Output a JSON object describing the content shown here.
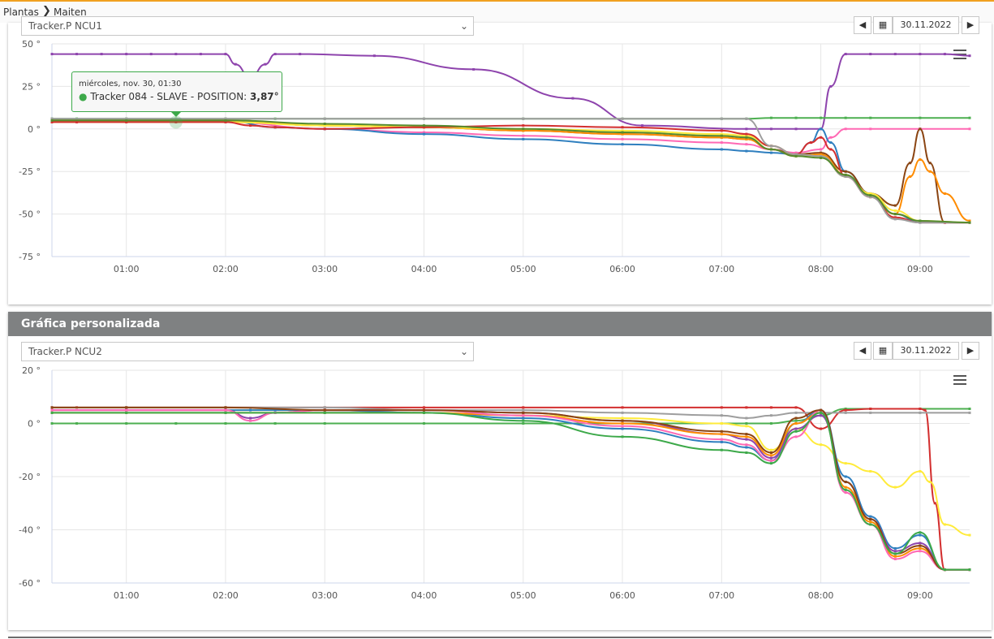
{
  "breadcrumb": {
    "items": [
      "Plantas",
      "Maiten"
    ],
    "separator": "❯"
  },
  "panel2": {
    "title": "Gráfica personalizada"
  },
  "chart1": {
    "selector_value": "Tracker.P NCU1",
    "date": "30.11.2022",
    "prev_label": "◀",
    "next_label": "▶",
    "calendar_icon": "calendar-icon",
    "tooltip": {
      "date": "miércoles, nov. 30, 01:30",
      "series": "Tracker 084 - SLAVE - POSITION: ",
      "value": "3,87°"
    }
  },
  "chart2": {
    "selector_value": "Tracker.P NCU2",
    "date": "30.11.2022",
    "prev_label": "◀",
    "next_label": "▶",
    "calendar_icon": "calendar-icon"
  },
  "colors": {
    "accent": "#f0a020",
    "header": "#7f8182",
    "grid": "#e6e6e6"
  },
  "chart_data": [
    {
      "type": "line",
      "title": "",
      "x_ticks": [
        "01:00",
        "02:00",
        "03:00",
        "04:00",
        "05:00",
        "06:00",
        "07:00",
        "08:00",
        "09:00"
      ],
      "y_ticks": [
        "50 °",
        "25 °",
        "0 °",
        "-25 °",
        "-50 °",
        "-75 °"
      ],
      "y_tick_values": [
        50,
        25,
        0,
        -25,
        -50,
        -75
      ],
      "ylim": [
        -75,
        50
      ],
      "xlim_hours": [
        0.25,
        9.5
      ],
      "grid": true,
      "series": [
        {
          "color": "#8e44ad",
          "x": [
            0.25,
            0.5,
            0.75,
            1,
            1.25,
            1.5,
            1.75,
            2,
            2.1,
            2.25,
            2.4,
            2.5,
            2.75,
            3.5,
            4.5,
            5.5,
            6.2,
            7.25,
            7.5,
            7.75,
            8,
            8.1,
            8.25,
            8.5,
            8.75,
            9,
            9.25,
            9.5
          ],
          "y": [
            44,
            44,
            44,
            44,
            44,
            44,
            44,
            44,
            38,
            30,
            38,
            44,
            44,
            43,
            35,
            18,
            2,
            0,
            0,
            0,
            0,
            25,
            44,
            44,
            44,
            44,
            44,
            43
          ]
        },
        {
          "color": "#4caf50",
          "x": [
            0.25,
            0.5,
            1,
            1.5,
            2,
            2.5,
            3,
            4,
            5,
            6,
            7,
            7.25,
            7.5,
            7.75,
            8,
            8.25,
            8.5,
            9,
            9.5
          ],
          "y": [
            6,
            6,
            6,
            6,
            6,
            6,
            6,
            6,
            6,
            6,
            6,
            6,
            6.5,
            6.5,
            6.5,
            6.5,
            6.5,
            6.5,
            6.5
          ]
        },
        {
          "color": "#ff69b4",
          "x": [
            0.25,
            0.5,
            1,
            2,
            3,
            4,
            5,
            6,
            7,
            7.25,
            7.5,
            7.75,
            8,
            8.1,
            8.25,
            8.5,
            9,
            9.5
          ],
          "y": [
            4,
            4,
            4,
            4,
            0,
            -2,
            -4,
            -6,
            -8,
            -9,
            -12,
            -14,
            -12,
            -5,
            0,
            0,
            0,
            0
          ]
        },
        {
          "color": "#2f7fbf",
          "x": [
            0.25,
            0.5,
            1,
            2,
            2.5,
            3,
            4,
            5,
            6,
            7,
            7.25,
            7.5,
            7.75,
            7.9,
            8,
            8.1,
            8.25,
            8.5,
            8.75,
            9,
            9.25,
            9.5
          ],
          "y": [
            5,
            5,
            5,
            5,
            1,
            0,
            -3,
            -6,
            -9,
            -12,
            -13,
            -14,
            -15,
            -8,
            0,
            -8,
            -25,
            -38,
            -50,
            -55,
            -55,
            -55
          ]
        },
        {
          "color": "#8b4513",
          "x": [
            0.25,
            1,
            2,
            3,
            4,
            5,
            6,
            7,
            7.25,
            7.5,
            7.75,
            8,
            8.25,
            8.5,
            8.75,
            8.9,
            9,
            9.1,
            9.25,
            9.5
          ],
          "y": [
            5,
            5,
            5,
            2,
            1,
            -1,
            -3,
            -5,
            -6,
            -12,
            -15,
            -14,
            -25,
            -38,
            -45,
            -20,
            0,
            -20,
            -55,
            -55
          ]
        },
        {
          "color": "#ff8c00",
          "x": [
            0.25,
            1,
            2,
            3,
            4,
            5,
            6,
            7,
            7.25,
            7.5,
            7.75,
            8,
            8.25,
            8.5,
            8.75,
            8.9,
            9,
            9.1,
            9.25,
            9.5
          ],
          "y": [
            5,
            5,
            5,
            2,
            1,
            -1,
            -3,
            -5,
            -6,
            -12,
            -16,
            -15,
            -27,
            -40,
            -50,
            -28,
            -18,
            -25,
            -38,
            -54
          ]
        },
        {
          "color": "#ffeb3b",
          "x": [
            0.25,
            1,
            2,
            3,
            4,
            5,
            6,
            7,
            7.25,
            7.5,
            7.75,
            8,
            8.25,
            8.5,
            8.75,
            9,
            9.5
          ],
          "y": [
            4,
            4,
            4,
            2,
            1,
            0,
            -1,
            -3,
            -4,
            -10,
            -15,
            -16,
            -28,
            -38,
            -48,
            -54,
            -55
          ]
        },
        {
          "color": "#d32f2f",
          "x": [
            0.25,
            0.5,
            1,
            1.5,
            2,
            2.25,
            2.5,
            3,
            4,
            5,
            6,
            7,
            7.25,
            7.5,
            7.75,
            7.9,
            8,
            8.1,
            8.25,
            8.5,
            8.75,
            9,
            9.25,
            9.5
          ],
          "y": [
            4,
            4,
            4,
            4,
            4,
            2,
            1,
            0,
            1,
            2,
            1,
            -1,
            -3,
            -10,
            -15,
            -8,
            -5,
            -12,
            -28,
            -40,
            -52,
            -55,
            -55,
            -55
          ]
        },
        {
          "color": "#9e9e9e",
          "x": [
            0.25,
            1,
            2,
            3,
            4,
            5,
            6,
            7,
            7.25,
            7.5,
            7.75,
            8,
            8.25,
            8.5,
            8.75,
            9,
            9.5
          ],
          "y": [
            6,
            6,
            6,
            6,
            6,
            6,
            6,
            6,
            6,
            -10,
            -15,
            -16,
            -28,
            -40,
            -53,
            -55,
            -55
          ]
        },
        {
          "color": "#558b2f",
          "x": [
            0.25,
            1,
            2,
            3,
            4,
            5,
            6,
            7,
            7.25,
            7.5,
            7.75,
            8,
            8.25,
            8.5,
            8.75,
            9,
            9.5
          ],
          "y": [
            5,
            5,
            5,
            3,
            2,
            0,
            -2,
            -4,
            -5,
            -12,
            -16,
            -17,
            -27,
            -39,
            -50,
            -54,
            -55
          ]
        }
      ]
    },
    {
      "type": "line",
      "title": "",
      "x_ticks": [
        "01:00",
        "02:00",
        "03:00",
        "04:00",
        "05:00",
        "06:00",
        "07:00",
        "08:00",
        "09:00"
      ],
      "y_ticks": [
        "20 °",
        "0 °",
        "-20 °",
        "-40 °",
        "-60 °"
      ],
      "y_tick_values": [
        20,
        0,
        -20,
        -40,
        -60
      ],
      "ylim": [
        -60,
        20
      ],
      "xlim_hours": [
        0.25,
        9.5
      ],
      "grid": true,
      "series": [
        {
          "color": "#4caf50",
          "x": [
            0.25,
            0.5,
            1,
            1.5,
            2,
            2.5,
            3,
            4,
            5,
            6,
            7,
            7.25,
            7.5,
            7.75,
            8,
            8.25,
            8.5,
            9,
            9.5
          ],
          "y": [
            0,
            0,
            0,
            0,
            0,
            0,
            0,
            0,
            0,
            0,
            0,
            0,
            0,
            1,
            3,
            5.5,
            5.5,
            5.5,
            5.5
          ]
        },
        {
          "color": "#d32f2f",
          "x": [
            0.25,
            0.5,
            1,
            2,
            3,
            4,
            5,
            6,
            7,
            7.25,
            7.5,
            7.75,
            8,
            8.25,
            8.5,
            9,
            9.05,
            9.15,
            9.25,
            9.5
          ],
          "y": [
            6,
            6,
            6,
            6,
            6,
            6,
            6,
            6,
            6,
            6,
            6,
            6,
            -2,
            5,
            5.5,
            5.5,
            5,
            -30,
            -55,
            -55
          ]
        },
        {
          "color": "#9e9e9e",
          "x": [
            0.25,
            1,
            2,
            3,
            4,
            5,
            6,
            7,
            7.25,
            7.5,
            7.75,
            8,
            8.25,
            8.5,
            9,
            9.5
          ],
          "y": [
            6,
            6,
            6,
            6,
            5,
            5,
            4,
            3,
            2,
            3,
            4,
            4,
            4,
            4,
            4,
            4
          ]
        },
        {
          "color": "#ffeb3b",
          "x": [
            0.25,
            1,
            2,
            3,
            4,
            5,
            6,
            7,
            7.25,
            7.5,
            7.75,
            8,
            8.25,
            8.5,
            8.75,
            9,
            9.1,
            9.25,
            9.5
          ],
          "y": [
            5,
            5,
            5,
            5,
            4,
            3,
            2,
            0,
            -1,
            -10,
            -2,
            -8,
            -15,
            -18,
            -24,
            -18,
            -22,
            -38,
            -42
          ]
        },
        {
          "color": "#2f7fbf",
          "x": [
            0.25,
            1,
            2,
            2.25,
            2.5,
            3,
            4,
            5,
            6,
            7,
            7.25,
            7.5,
            7.75,
            8,
            8.25,
            8.5,
            8.75,
            9,
            9.25,
            9.5
          ],
          "y": [
            5,
            5,
            5,
            5,
            5,
            5,
            4,
            2,
            -2,
            -7,
            -9,
            -14,
            0,
            5,
            -20,
            -35,
            -47,
            -42,
            -55,
            -55
          ]
        },
        {
          "color": "#8e44ad",
          "x": [
            0.25,
            1,
            2,
            2.25,
            2.5,
            3,
            4,
            5,
            6,
            7,
            7.25,
            7.5,
            7.75,
            8,
            8.25,
            8.5,
            8.75,
            9,
            9.25,
            9.5
          ],
          "y": [
            5,
            5,
            5,
            2,
            4,
            5,
            5,
            4,
            1,
            -4,
            -6,
            -13,
            -2,
            3,
            -22,
            -36,
            -48,
            -45,
            -55,
            -55
          ]
        },
        {
          "color": "#ff8c00",
          "x": [
            0.25,
            1,
            2,
            3,
            4,
            5,
            6,
            7,
            7.25,
            7.5,
            7.75,
            8,
            8.25,
            8.5,
            8.75,
            9,
            9.25,
            9.5
          ],
          "y": [
            4,
            4,
            4,
            4,
            4,
            3,
            0,
            -4,
            -5,
            -12,
            0,
            4,
            -24,
            -37,
            -50,
            -47,
            -55,
            -55
          ]
        },
        {
          "color": "#ff69b4",
          "x": [
            0.25,
            1,
            2,
            2.25,
            2.5,
            3,
            4,
            5,
            6,
            7,
            7.25,
            7.5,
            7.75,
            8,
            8.25,
            8.5,
            8.75,
            9,
            9.25,
            9.5
          ],
          "y": [
            5,
            5,
            5,
            1,
            4,
            5,
            5,
            3,
            -1,
            -6,
            -8,
            -14,
            -5,
            5,
            -26,
            -38,
            -51,
            -48,
            -55,
            -55
          ]
        },
        {
          "color": "#8b4513",
          "x": [
            0.25,
            1,
            2,
            3,
            4,
            5,
            6,
            7,
            7.25,
            7.5,
            7.75,
            8,
            8.25,
            8.5,
            8.75,
            9,
            9.25,
            9.5
          ],
          "y": [
            6,
            6,
            6,
            5,
            5,
            4,
            1,
            -3,
            -4,
            -11,
            2,
            5,
            -22,
            -36,
            -49,
            -46,
            -55,
            -55
          ]
        },
        {
          "color": "#3da94a",
          "x": [
            0.25,
            1,
            2,
            3,
            4,
            5,
            6,
            7,
            7.25,
            7.5,
            7.75,
            8,
            8.25,
            8.5,
            8.75,
            9,
            9.25,
            9.5
          ],
          "y": [
            4,
            4,
            4,
            4,
            4,
            1,
            -5,
            -10,
            -11,
            -15,
            -3,
            4,
            -25,
            -38,
            -49,
            -41,
            -55,
            -55
          ]
        }
      ]
    }
  ]
}
